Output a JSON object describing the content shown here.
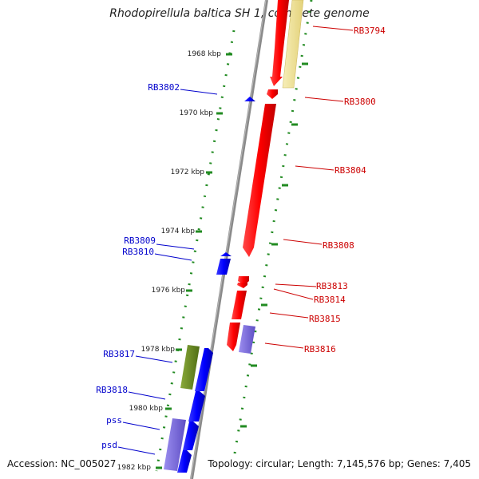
{
  "title": "Rhodopirellula baltica SH 1, complete genome",
  "footer": {
    "accession": "Accession: NC_005027",
    "topology": "Topology: circular; Length: 7,145,576 bp; Genes: 7,405"
  },
  "colors": {
    "forward_gene": "#ff0000",
    "reverse_gene": "#0000ff",
    "rna_purple": "#7b68d8",
    "pseudo_yellow": "#f0e49a",
    "green_feature": "#6b8e23",
    "backbone": "#888888",
    "tick": "#228b22"
  },
  "scale": {
    "unit": "kbp",
    "ticks": [
      "1968 kbp",
      "1970 kbp",
      "1972 kbp",
      "1974 kbp",
      "1976 kbp",
      "1978 kbp",
      "1980 kbp",
      "1982 kbp"
    ]
  },
  "labels": {
    "forward": [
      "RB3794",
      "RB3800",
      "RB3804",
      "RB3808",
      "RB3813",
      "RB3814",
      "RB3815",
      "RB3816"
    ],
    "reverse": [
      "RB3802",
      "RB3809",
      "RB3810",
      "RB3817",
      "RB3818",
      "pss",
      "psd"
    ]
  }
}
